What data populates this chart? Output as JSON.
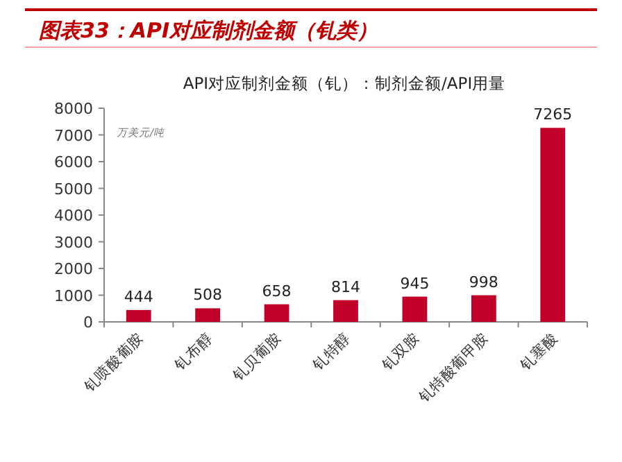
{
  "chart_data": {
    "type": "bar",
    "title": "图表33：API对应制剂金额（钆类）",
    "subtitle": "API对应制剂金额（钆）：制剂金额/API用量",
    "ylabel": "万美元/吨",
    "categories": [
      "钆喷酸葡胺",
      "钆布醇",
      "钆贝葡胺",
      "钆特醇",
      "钆双胺",
      "钆特酸葡甲胺",
      "钆塞酸"
    ],
    "values": [
      444,
      508,
      658,
      814,
      945,
      998,
      7265
    ],
    "color": "#c00029",
    "ylim": [
      0,
      8000
    ],
    "yticks": [
      0,
      1000,
      2000,
      3000,
      4000,
      5000,
      6000,
      7000,
      8000
    ],
    "data_labels": true,
    "grid": false,
    "legend": false
  }
}
